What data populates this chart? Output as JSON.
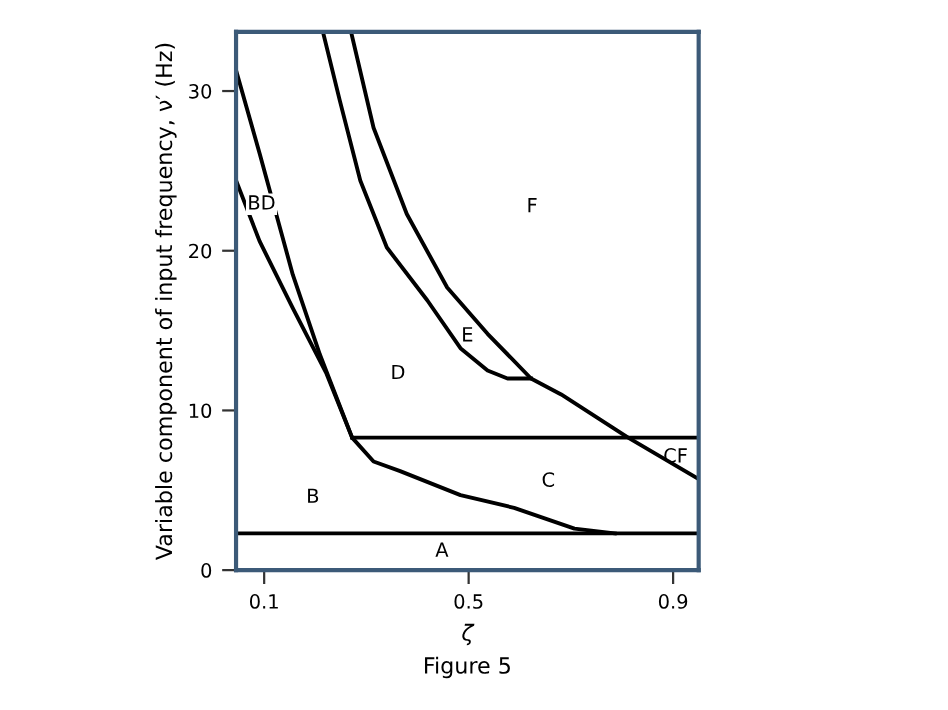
{
  "chart_data": {
    "type": "line",
    "xlabel": "ζ",
    "ylabel": "Variable component of input frequency, ν′ (Hz)",
    "xlim": [
      0.045,
      0.95
    ],
    "ylim": [
      0,
      33.7
    ],
    "xticks": [
      0.1,
      0.5,
      0.9
    ],
    "yticks": [
      0,
      10,
      20,
      30
    ],
    "grid": false,
    "legend": false,
    "marker": "none",
    "line_style": "solid",
    "series": [
      {
        "color": "#000000",
        "x": [
          0.045,
          0.091,
          0.156,
          0.209,
          0.272,
          0.314,
          0.366,
          0.484,
          0.589,
          0.707,
          0.786
        ],
        "values": [
          31.3,
          26.1,
          18.5,
          13.5,
          8.3,
          6.8,
          6.2,
          4.7,
          3.9,
          2.6,
          2.3
        ]
      },
      {
        "color": "#000000",
        "x": [
          0.045,
          0.091,
          0.156,
          0.222,
          0.272
        ],
        "values": [
          24.4,
          20.6,
          16.4,
          12.3,
          8.3
        ]
      },
      {
        "color": "#000000",
        "x": [
          0.272,
          0.95
        ],
        "values": [
          8.3,
          8.3
        ]
      },
      {
        "color": "#000000",
        "x": [
          0.045,
          0.95
        ],
        "values": [
          2.3,
          2.3
        ]
      },
      {
        "color": "#000000",
        "x": [
          0.215,
          0.248,
          0.288,
          0.34,
          0.419,
          0.484,
          0.537,
          0.576,
          0.622
        ],
        "values": [
          33.7,
          29.4,
          24.4,
          20.2,
          16.9,
          13.9,
          12.5,
          12.0,
          12.0
        ]
      },
      {
        "color": "#000000",
        "x": [
          0.27,
          0.314,
          0.379,
          0.458,
          0.537,
          0.622,
          0.681,
          0.812,
          0.95
        ],
        "values": [
          33.7,
          27.7,
          22.3,
          17.7,
          14.8,
          12.0,
          11.0,
          8.3,
          5.7
        ]
      }
    ],
    "annotations": [
      "BD",
      "F",
      "E",
      "D",
      "CF",
      "C",
      "B",
      "A",
      "Figure 5"
    ]
  }
}
